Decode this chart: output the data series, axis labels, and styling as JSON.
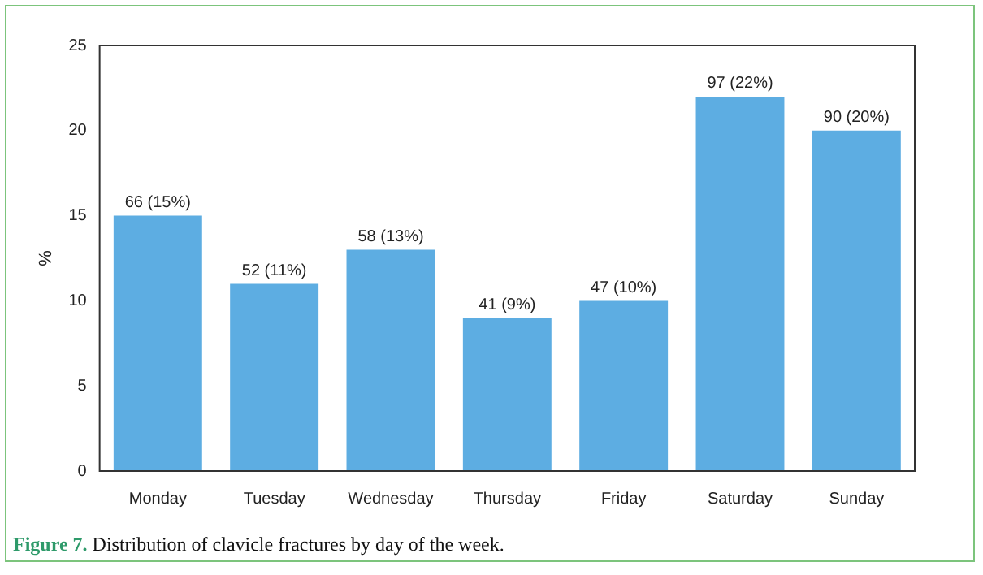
{
  "chart_data": {
    "type": "bar",
    "ylabel": "%",
    "categories": [
      "Monday",
      "Tuesday",
      "Wednesday",
      "Thursday",
      "Friday",
      "Saturday",
      "Sunday"
    ],
    "values": [
      15,
      11,
      13,
      9,
      10,
      22,
      20
    ],
    "value_labels": [
      "66 (15%)",
      "52 (11%)",
      "58 (13%)",
      "41 (9%)",
      "47 (10%)",
      "97 (22%)",
      "90 (20%)"
    ],
    "color": "#5dade2",
    "ylim": [
      0,
      25
    ],
    "yticks": [
      0,
      5,
      10,
      15,
      20,
      25
    ],
    "grid": false,
    "legend": false,
    "annotations": [
      "Figure 7. Distribution of clavicle fractures by day of the week."
    ]
  }
}
